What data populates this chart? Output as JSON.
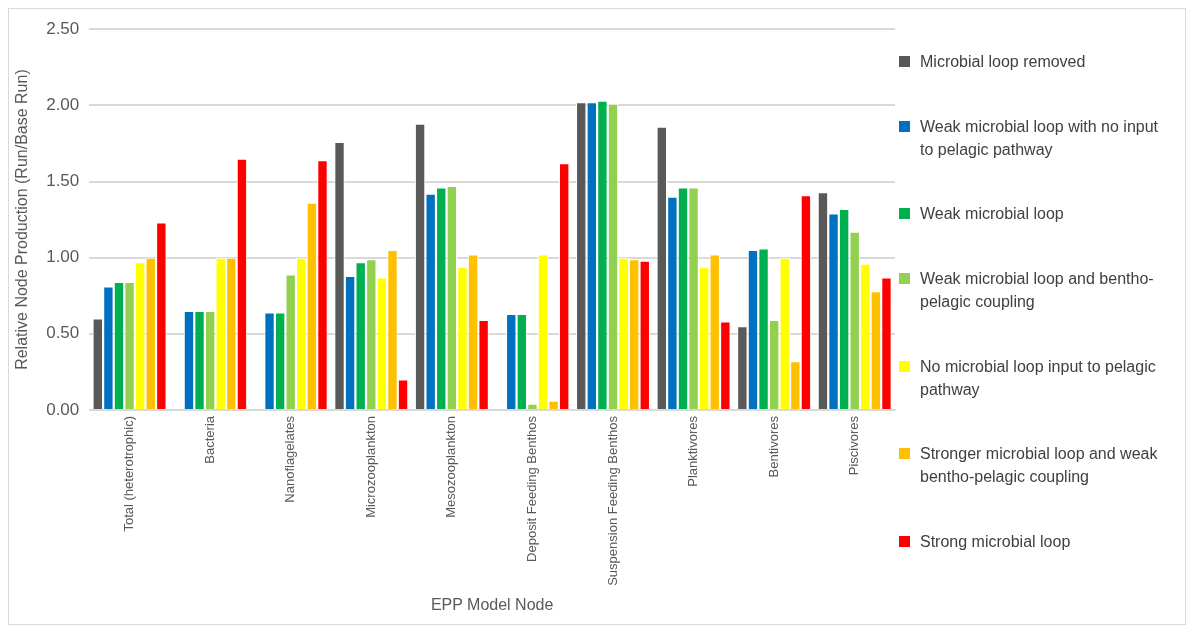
{
  "chart_data": {
    "type": "bar",
    "xlabel": "EPP Model Node",
    "ylabel": "Relative Node Production (Run/Base Run)",
    "categories": [
      "Total (heterotrophic)",
      "Bacteria",
      "Nanoflagelates",
      "Microzooplankton",
      "Mesozooplankton",
      "Deposit Feeding Benthos",
      "Suspension Feeding Benthos",
      "Planktivores",
      "Bentivores",
      "Piscivores"
    ],
    "series": [
      {
        "name": "Microbial loop removed",
        "color": "#595959",
        "values": [
          0.6,
          null,
          null,
          1.76,
          1.88,
          null,
          2.02,
          1.86,
          0.55,
          1.43
        ]
      },
      {
        "name": "Weak microbial loop with no input to pelagic pathway",
        "color": "#0070c0",
        "values": [
          0.81,
          0.65,
          0.64,
          0.88,
          1.42,
          0.63,
          2.02,
          1.4,
          1.05,
          1.29
        ]
      },
      {
        "name": "Weak microbial loop",
        "color": "#00b050",
        "values": [
          0.84,
          0.65,
          0.64,
          0.97,
          1.46,
          0.63,
          2.03,
          1.46,
          1.06,
          1.32
        ]
      },
      {
        "name": "Weak microbial loop and bentho-pelagic coupling",
        "color": "#92d050",
        "values": [
          0.84,
          0.65,
          0.89,
          0.99,
          1.47,
          0.04,
          2.01,
          1.46,
          0.59,
          1.17
        ]
      },
      {
        "name": "No microbial loop input to pelagic pathway",
        "color": "#ffff00",
        "values": [
          0.97,
          1.0,
          1.0,
          0.87,
          0.94,
          1.02,
          1.0,
          0.94,
          1.0,
          0.96
        ]
      },
      {
        "name": "Stronger microbial loop and weak bentho-pelagic coupling",
        "color": "#ffc000",
        "values": [
          1.0,
          1.0,
          1.36,
          1.05,
          1.02,
          0.06,
          0.99,
          1.02,
          0.32,
          0.78
        ]
      },
      {
        "name": "Strong microbial loop",
        "color": "#ff0000",
        "values": [
          1.23,
          1.65,
          1.64,
          0.2,
          0.59,
          1.62,
          0.98,
          0.58,
          1.41,
          0.87
        ]
      }
    ],
    "ylim": [
      0,
      2.5
    ],
    "yticks": [
      {
        "value": 0,
        "label": "0.00"
      },
      {
        "value": 0.5,
        "label": "0.50"
      },
      {
        "value": 1,
        "label": "1.00"
      },
      {
        "value": 1.5,
        "label": "1.50"
      },
      {
        "value": 2,
        "label": "2.00"
      },
      {
        "value": 2.5,
        "label": "2.50"
      }
    ],
    "grid": "y",
    "legend": "right"
  }
}
